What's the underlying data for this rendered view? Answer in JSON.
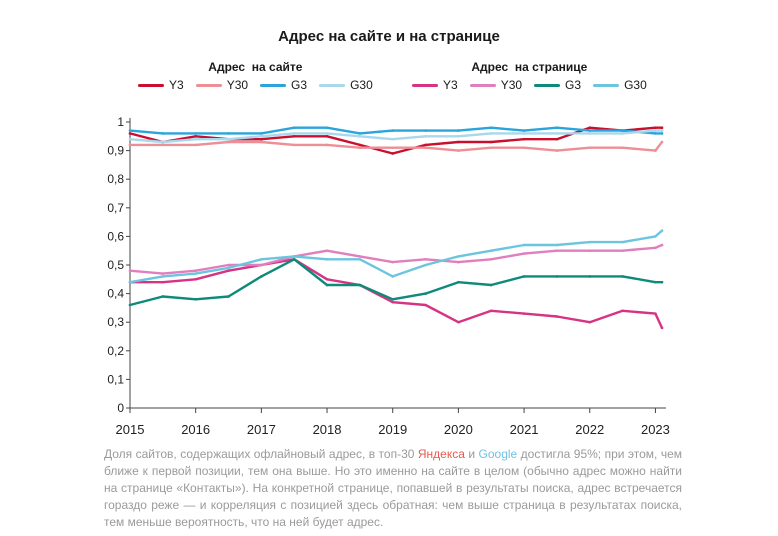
{
  "title": "Адрес на сайте и на странице",
  "legend_groups": [
    {
      "heading": "Адрес  на сайте",
      "items": [
        {
          "label": "Y3",
          "color": "#c8102e"
        },
        {
          "label": "Y30",
          "color": "#ee8e95"
        },
        {
          "label": "G3",
          "color": "#2aa4dc"
        },
        {
          "label": "G30",
          "color": "#a9d7ec"
        }
      ]
    },
    {
      "heading": "Адрес  на странице",
      "items": [
        {
          "label": "Y3",
          "color": "#d63384"
        },
        {
          "label": "Y30",
          "color": "#e07fbd"
        },
        {
          "label": "G3",
          "color": "#0e8a7a"
        },
        {
          "label": "G30",
          "color": "#6cc5df"
        }
      ]
    }
  ],
  "caption": {
    "part1": "Доля сайтов, содержащих офлайновый адрес, в топ-30 ",
    "yandex": "Яндекса",
    "part2": " и ",
    "google": "Google",
    "part3": " достигла 95%; при этом, чем ближе к первой позиции, тем она выше. Но это именно на сайте в целом (обычно адрес можно найти на странице «Контакты»). На конкретной странице, попавшей в результаты поиска, адрес встречается гораздо реже — и корреляция с позицией здесь обратная: чем выше страница в результатах поиска, тем меньше вероятность, что на ней будет адрес."
  },
  "chart_data": {
    "type": "line",
    "title": "Адрес на сайте и на странице",
    "xlabel": "",
    "ylabel": "",
    "xlim": [
      2015,
      2023.1
    ],
    "ylim": [
      0,
      1
    ],
    "x_ticks": [
      2015,
      2016,
      2017,
      2018,
      2019,
      2020,
      2021,
      2022,
      2023
    ],
    "y_ticks": [
      0,
      0.1,
      0.2,
      0.3,
      0.4,
      0.5,
      0.6,
      0.7,
      0.8,
      0.9,
      1
    ],
    "y_tick_labels": [
      "0",
      "0,1",
      "0,2",
      "0,3",
      "0,4",
      "0,5",
      "0,6",
      "0,7",
      "0,8",
      "0,9",
      "1"
    ],
    "grid": false,
    "legend": "top",
    "x": [
      2015.0,
      2015.5,
      2016.0,
      2016.5,
      2017.0,
      2017.5,
      2018.0,
      2018.5,
      2019.0,
      2019.5,
      2020.0,
      2020.5,
      2021.0,
      2021.5,
      2022.0,
      2022.5,
      2023.0,
      2023.1
    ],
    "series": [
      {
        "group": "Адрес  на сайте",
        "name": "Y3",
        "color": "#c8102e",
        "values": [
          0.96,
          0.93,
          0.95,
          0.94,
          0.94,
          0.95,
          0.95,
          0.92,
          0.89,
          0.92,
          0.93,
          0.93,
          0.94,
          0.94,
          0.98,
          0.97,
          0.98,
          0.98
        ]
      },
      {
        "group": "Адрес  на сайте",
        "name": "Y30",
        "color": "#ee8e95",
        "values": [
          0.92,
          0.92,
          0.92,
          0.93,
          0.93,
          0.92,
          0.92,
          0.91,
          0.91,
          0.91,
          0.9,
          0.91,
          0.91,
          0.9,
          0.91,
          0.91,
          0.9,
          0.93
        ]
      },
      {
        "group": "Адрес  на сайте",
        "name": "G3",
        "color": "#2aa4dc",
        "values": [
          0.97,
          0.96,
          0.96,
          0.96,
          0.96,
          0.98,
          0.98,
          0.96,
          0.97,
          0.97,
          0.97,
          0.98,
          0.97,
          0.98,
          0.97,
          0.97,
          0.96,
          0.96
        ]
      },
      {
        "group": "Адрес  на сайте",
        "name": "G30",
        "color": "#a9d7ec",
        "values": [
          0.94,
          0.93,
          0.94,
          0.94,
          0.95,
          0.96,
          0.96,
          0.95,
          0.94,
          0.95,
          0.95,
          0.96,
          0.96,
          0.96,
          0.96,
          0.96,
          0.97,
          0.97
        ]
      },
      {
        "group": "Адрес  на странице",
        "name": "Y3",
        "color": "#d63384",
        "values": [
          0.44,
          0.44,
          0.45,
          0.48,
          0.5,
          0.52,
          0.45,
          0.43,
          0.37,
          0.36,
          0.3,
          0.34,
          0.33,
          0.32,
          0.3,
          0.34,
          0.33,
          0.28
        ]
      },
      {
        "group": "Адрес  на странице",
        "name": "Y30",
        "color": "#e07fbd",
        "values": [
          0.48,
          0.47,
          0.48,
          0.5,
          0.5,
          0.53,
          0.55,
          0.53,
          0.51,
          0.52,
          0.51,
          0.52,
          0.54,
          0.55,
          0.55,
          0.55,
          0.56,
          0.57
        ]
      },
      {
        "group": "Адрес  на странице",
        "name": "G3",
        "color": "#0e8a7a",
        "values": [
          0.36,
          0.39,
          0.38,
          0.39,
          0.46,
          0.52,
          0.43,
          0.43,
          0.38,
          0.4,
          0.44,
          0.43,
          0.46,
          0.46,
          0.46,
          0.46,
          0.44,
          0.44
        ]
      },
      {
        "group": "Адрес  на странице",
        "name": "G30",
        "color": "#6cc5df",
        "values": [
          0.44,
          0.46,
          0.47,
          0.49,
          0.52,
          0.53,
          0.52,
          0.52,
          0.46,
          0.5,
          0.53,
          0.55,
          0.57,
          0.57,
          0.58,
          0.58,
          0.6,
          0.62
        ]
      }
    ]
  }
}
